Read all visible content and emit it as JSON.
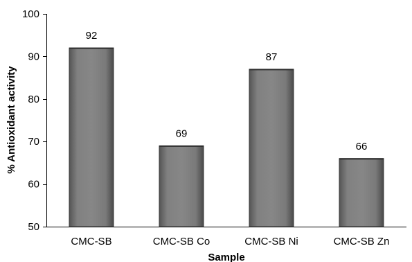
{
  "chart_data": {
    "type": "bar",
    "categories": [
      "CMC-SB",
      "CMC-SB Co",
      "CMC-SB Ni",
      "CMC-SB Zn"
    ],
    "values": [
      92,
      69,
      87,
      66
    ],
    "data_labels": [
      "92",
      "69",
      "87",
      "66"
    ],
    "xlabel": "Sample",
    "ylabel": "% Antioxidant activity",
    "ylim": [
      50,
      100
    ],
    "yticks": [
      "50",
      "60",
      "70",
      "80",
      "90",
      "100"
    ],
    "grid": false,
    "legend": "none",
    "bar_color": "#7a7a7a"
  }
}
